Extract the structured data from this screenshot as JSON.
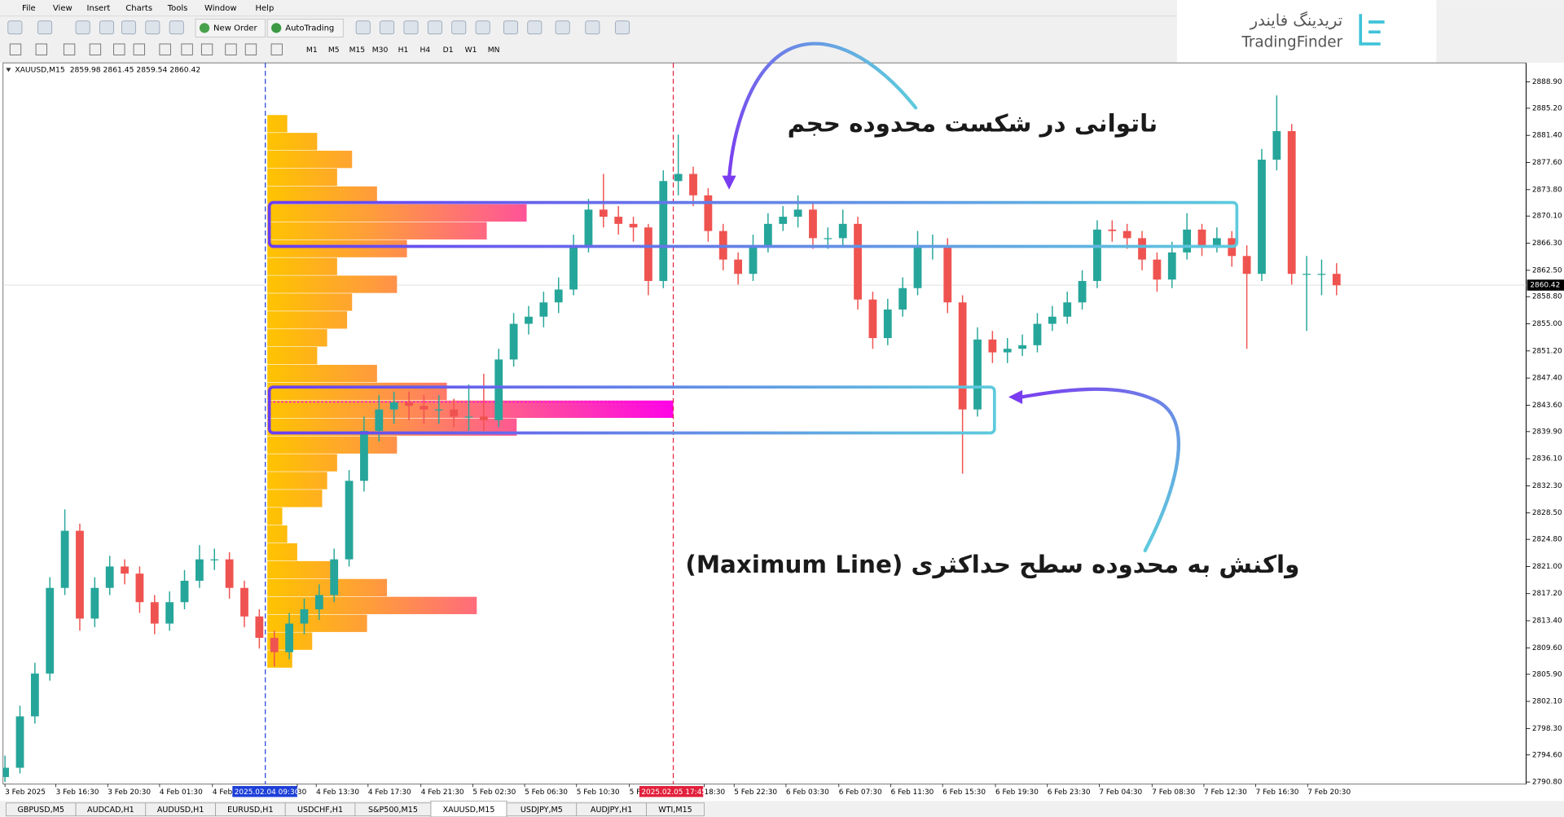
{
  "window": {
    "menu": [
      "File",
      "View",
      "Insert",
      "Charts",
      "Tools",
      "Window",
      "Help"
    ],
    "toolbar": {
      "new_order": "New Order",
      "autotrading": "AutoTrading",
      "timeframes": [
        "M1",
        "M5",
        "M15",
        "M30",
        "H1",
        "H4",
        "D1",
        "W1",
        "MN"
      ]
    }
  },
  "logo": {
    "persian": "تریدینگ فایندر",
    "latin": "TradingFinder"
  },
  "chart_data": {
    "type": "candlestick",
    "symbol": "XAUUSD,M15",
    "quote": "2859.98 2861.45 2859.54 2860.42",
    "ylim": [
      2790.8,
      2888.9
    ],
    "yticks": [
      {
        "value": 2888.9,
        "label": "2888.90"
      },
      {
        "value": 2885.2,
        "label": "2885.20"
      },
      {
        "value": 2881.4,
        "label": "2881.40"
      },
      {
        "value": 2877.6,
        "label": "2877.60"
      },
      {
        "value": 2873.8,
        "label": "2873.80"
      },
      {
        "value": 2870.1,
        "label": "2870.10"
      },
      {
        "value": 2866.3,
        "label": "2866.30"
      },
      {
        "value": 2862.5,
        "label": "2862.50"
      },
      {
        "value": 2858.8,
        "label": "2858.80"
      },
      {
        "value": 2855,
        "label": "2855.00"
      },
      {
        "value": 2851.2,
        "label": "2851.20"
      },
      {
        "value": 2847.4,
        "label": "2847.40"
      },
      {
        "value": 2843.6,
        "label": "2843.60"
      },
      {
        "value": 2839.9,
        "label": "2839.90"
      },
      {
        "value": 2836.1,
        "label": "2836.10"
      },
      {
        "value": 2832.3,
        "label": "2832.30"
      },
      {
        "value": 2828.5,
        "label": "2828.50"
      },
      {
        "value": 2824.8,
        "label": "2824.80"
      },
      {
        "value": 2821,
        "label": "2821.00"
      },
      {
        "value": 2817.2,
        "label": "2817.20"
      },
      {
        "value": 2813.4,
        "label": "2813.40"
      },
      {
        "value": 2809.6,
        "label": "2809.60"
      },
      {
        "value": 2805.9,
        "label": "2805.90"
      },
      {
        "value": 2802.1,
        "label": "2802.10"
      },
      {
        "value": 2798.3,
        "label": "2798.30"
      },
      {
        "value": 2794.6,
        "label": "2794.60"
      },
      {
        "value": 2790.8,
        "label": "2790.80"
      }
    ],
    "current_price": {
      "value": 2860.42,
      "label": "2860.42"
    },
    "x_labels": [
      "3 Feb 2025",
      "3 Feb 16:30",
      "3 Feb 20:30",
      "4 Feb 01:30",
      "4 Feb",
      "30",
      "4 Feb 13:30",
      "4 Feb 17:30",
      "4 Feb 21:30",
      "5 Feb 02:30",
      "5 Feb 06:30",
      "5 Feb 10:30",
      "5 F",
      "18:30",
      "5 Feb 22:30",
      "6 Feb 03:30",
      "6 Feb 07:30",
      "6 Feb 11:30",
      "6 Feb 15:30",
      "6 Feb 19:30",
      "6 Feb 23:30",
      "7 Feb 04:30",
      "7 Feb 08:30",
      "7 Feb 12:30",
      "7 Feb 16:30",
      "7 Feb 20:30"
    ],
    "markers": [
      {
        "label": "2025.02.04 09:30",
        "color": "#1d3fd8"
      },
      {
        "label": "2025.02.05 17:45",
        "color": "#e2203c"
      }
    ],
    "up_color": "#26a69a",
    "down_color": "#ef5350",
    "candles": [
      [
        2791.5,
        2794.5,
        2790.8,
        2792.8
      ],
      [
        2792.8,
        2801.5,
        2792,
        2800
      ],
      [
        2800,
        2807.5,
        2799,
        2806
      ],
      [
        2806,
        2819.5,
        2805,
        2818
      ],
      [
        2818,
        2829,
        2817,
        2826
      ],
      [
        2826,
        2827,
        2812,
        2813.7
      ],
      [
        2813.7,
        2819.5,
        2812.5,
        2818
      ],
      [
        2818,
        2822.5,
        2817,
        2821
      ],
      [
        2821,
        2822,
        2818.5,
        2820
      ],
      [
        2820,
        2821,
        2814.5,
        2816
      ],
      [
        2816,
        2817,
        2811.5,
        2813
      ],
      [
        2813,
        2817.5,
        2812,
        2816
      ],
      [
        2816,
        2820.5,
        2815,
        2819
      ],
      [
        2819,
        2824,
        2818,
        2822
      ],
      [
        2822,
        2823.5,
        2820.5,
        2822
      ],
      [
        2822,
        2823,
        2816.5,
        2818
      ],
      [
        2818,
        2819,
        2812.5,
        2814
      ],
      [
        2814,
        2815,
        2809.5,
        2811
      ],
      [
        2811,
        2812,
        2807,
        2809
      ],
      [
        2809,
        2814.5,
        2808,
        2813
      ],
      [
        2813,
        2816.5,
        2811.5,
        2815
      ],
      [
        2815,
        2818.5,
        2813.5,
        2817
      ],
      [
        2817,
        2823.5,
        2816,
        2822
      ],
      [
        2822,
        2834.5,
        2821,
        2833
      ],
      [
        2833,
        2842,
        2831.5,
        2840
      ],
      [
        2840,
        2845,
        2838.5,
        2843
      ],
      [
        2843,
        2845.5,
        2841,
        2844
      ],
      [
        2844,
        2845.5,
        2841.5,
        2843.5
      ],
      [
        2843.5,
        2845,
        2841,
        2843
      ],
      [
        2843,
        2845,
        2841,
        2843
      ],
      [
        2843,
        2844.5,
        2840.5,
        2842
      ],
      [
        2842,
        2846.5,
        2840,
        2842
      ],
      [
        2842,
        2848,
        2840,
        2841.5
      ],
      [
        2841.5,
        2851.5,
        2840.5,
        2850
      ],
      [
        2850,
        2856.5,
        2849,
        2855
      ],
      [
        2855,
        2857.5,
        2853.5,
        2856
      ],
      [
        2856,
        2859.5,
        2854.5,
        2858
      ],
      [
        2858,
        2861.5,
        2856.5,
        2859.8
      ],
      [
        2859.8,
        2867.5,
        2859,
        2866
      ],
      [
        2866,
        2872.5,
        2865,
        2871
      ],
      [
        2871,
        2876,
        2868.5,
        2870
      ],
      [
        2870,
        2871.5,
        2867.5,
        2869
      ],
      [
        2869,
        2870,
        2866.5,
        2868.5
      ],
      [
        2868.5,
        2869,
        2859,
        2861
      ],
      [
        2861,
        2876.5,
        2860,
        2875
      ],
      [
        2875,
        2881.5,
        2873,
        2876
      ],
      [
        2876,
        2877,
        2871.5,
        2873
      ],
      [
        2873,
        2874,
        2866.5,
        2868
      ],
      [
        2868,
        2869,
        2862.5,
        2864
      ],
      [
        2864,
        2865,
        2860.5,
        2862
      ],
      [
        2862,
        2867.5,
        2861,
        2866
      ],
      [
        2866,
        2870.5,
        2865,
        2869
      ],
      [
        2869,
        2871.5,
        2868,
        2870
      ],
      [
        2870,
        2873,
        2868.5,
        2871
      ],
      [
        2871,
        2872,
        2865.5,
        2867
      ],
      [
        2867,
        2868.5,
        2865.5,
        2867
      ],
      [
        2867,
        2871,
        2866,
        2869
      ],
      [
        2869,
        2870,
        2857,
        2858.4
      ],
      [
        2858.4,
        2859.5,
        2851.5,
        2853
      ],
      [
        2853,
        2858.5,
        2852,
        2857
      ],
      [
        2857,
        2861.5,
        2856,
        2860
      ],
      [
        2860,
        2868,
        2859,
        2866
      ],
      [
        2866,
        2867.5,
        2864,
        2866
      ],
      [
        2866,
        2867,
        2856.5,
        2858
      ],
      [
        2858,
        2859,
        2834,
        2843
      ],
      [
        2843,
        2854.5,
        2842,
        2852.8
      ],
      [
        2852.8,
        2854,
        2849.5,
        2851
      ],
      [
        2851,
        2853,
        2849.5,
        2851.5
      ],
      [
        2851.5,
        2853.5,
        2850.5,
        2852
      ],
      [
        2852,
        2856.5,
        2851,
        2855
      ],
      [
        2855,
        2857.5,
        2854,
        2856
      ],
      [
        2856,
        2859.5,
        2855,
        2858
      ],
      [
        2858,
        2862.5,
        2857,
        2861
      ],
      [
        2861,
        2869.5,
        2860,
        2868.2
      ],
      [
        2868.2,
        2869.5,
        2866.5,
        2868
      ],
      [
        2868,
        2869,
        2865.5,
        2867
      ],
      [
        2867,
        2868,
        2862.5,
        2864
      ],
      [
        2864,
        2865,
        2859.5,
        2861.2
      ],
      [
        2861.2,
        2866.5,
        2860,
        2865
      ],
      [
        2865,
        2870.5,
        2864,
        2868.2
      ],
      [
        2868.2,
        2869,
        2864.5,
        2866
      ],
      [
        2866,
        2868.5,
        2865,
        2867
      ],
      [
        2867,
        2868,
        2863,
        2864.5
      ],
      [
        2864.5,
        2866,
        2851.5,
        2862
      ],
      [
        2862,
        2879.5,
        2861,
        2878
      ],
      [
        2878,
        2887,
        2876.5,
        2882
      ],
      [
        2882,
        2883,
        2860.5,
        2862
      ],
      [
        2862,
        2864.5,
        2854,
        2862
      ],
      [
        2862,
        2864,
        2859,
        2862
      ],
      [
        2862,
        2863.5,
        2859,
        2860.4
      ]
    ],
    "volume_profile": {
      "levels": [
        2883,
        2880.5,
        2878,
        2875.5,
        2873,
        2870.5,
        2868,
        2865.5,
        2863,
        2860.5,
        2858,
        2855.5,
        2853,
        2850.5,
        2848,
        2845.5,
        2843,
        2840.5,
        2838,
        2835.5,
        2833,
        2830.5,
        2828,
        2825.5,
        2823,
        2820.5,
        2818,
        2815.5,
        2813,
        2810.5,
        2808
      ],
      "volumes": [
        20,
        50,
        85,
        70,
        110,
        260,
        220,
        140,
        70,
        130,
        85,
        80,
        60,
        50,
        110,
        180,
        407,
        250,
        130,
        70,
        60,
        55,
        15,
        20,
        30,
        65,
        120,
        210,
        100,
        45,
        25
      ]
    },
    "annotations": [
      "ناتوانی در شکست محدوده حجم",
      "واکنش به محدوده سطح حداکثری (Maximum Line)"
    ]
  },
  "tabs": [
    "GBPUSD,M5",
    "AUDCAD,H1",
    "AUDUSD,H1",
    "EURUSD,H1",
    "USDCHF,H1",
    "S&P500,M15",
    "XAUUSD,M15",
    "USDJPY,M5",
    "AUDJPY,H1",
    "WTI,M15"
  ],
  "active_tab": 6
}
